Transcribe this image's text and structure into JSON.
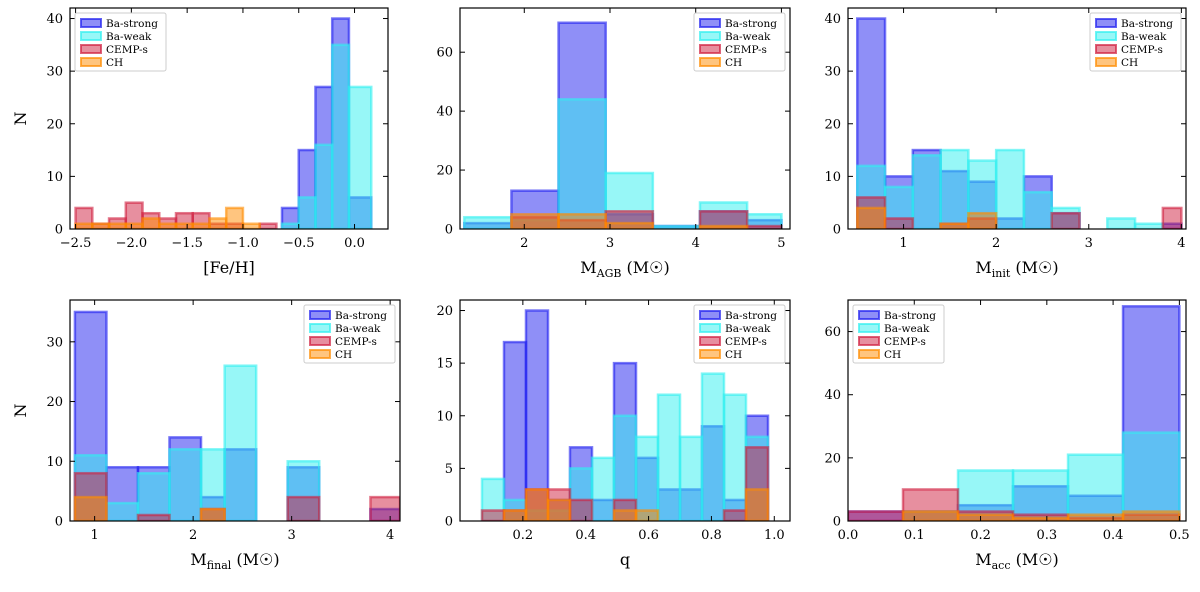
{
  "legend_labels": [
    "Ba-strong",
    "Ba-weak",
    "CEMP-s",
    "CH"
  ],
  "colors": {
    "Ba-strong": "#2020f0",
    "Ba-weak": "#30f0f0",
    "CEMP-s": "#d02040",
    "CH": "#ff8c00"
  },
  "chart_data": [
    {
      "type": "histogram",
      "xlabel": "[Fe/H]",
      "ylabel": "N",
      "xlim": [
        -2.55,
        0.3
      ],
      "ylim": [
        0,
        42
      ],
      "xticks": [
        -2.5,
        -2.0,
        -1.5,
        -1.0,
        -0.5,
        0.0
      ],
      "xtick_labels": [
        "−2.5",
        "−2.0",
        "−1.5",
        "−1.0",
        "−0.5",
        "0.0"
      ],
      "yticks": [
        0,
        10,
        20,
        30,
        40
      ],
      "legend_position": "top-left",
      "series": [
        {
          "name": "Ba-strong",
          "edges": [
            -0.65,
            -0.5,
            -0.35,
            -0.2,
            -0.05,
            0.15
          ],
          "values": [
            4,
            15,
            27,
            40,
            6
          ]
        },
        {
          "name": "Ba-weak",
          "edges": [
            -0.65,
            -0.5,
            -0.35,
            -0.2,
            -0.05,
            0.15
          ],
          "values": [
            1,
            6,
            16,
            35,
            27
          ]
        },
        {
          "name": "CEMP-s",
          "edges": [
            -2.5,
            -2.35,
            -2.2,
            -2.05,
            -1.9,
            -1.75,
            -1.6,
            -1.45,
            -1.3,
            -1.15,
            -1.0,
            -0.85,
            -0.7
          ],
          "values": [
            4,
            1,
            2,
            5,
            3,
            2,
            3,
            3,
            1,
            1,
            0,
            1
          ]
        },
        {
          "name": "CH",
          "edges": [
            -2.5,
            -2.35,
            -2.2,
            -2.05,
            -1.9,
            -1.75,
            -1.6,
            -1.45,
            -1.3,
            -1.15,
            -1.0,
            -0.85,
            -0.7
          ],
          "values": [
            1,
            1,
            1,
            1,
            2,
            1,
            1,
            1,
            2,
            4,
            1,
            0
          ]
        }
      ]
    },
    {
      "type": "histogram",
      "xlabel": "M_AGB (M☉)",
      "ylabel": "",
      "xlim": [
        1.25,
        5.1
      ],
      "ylim": [
        0,
        75
      ],
      "xticks": [
        2,
        3,
        4,
        5
      ],
      "xtick_labels": [
        "2",
        "3",
        "4",
        "5"
      ],
      "yticks": [
        0,
        20,
        40,
        60
      ],
      "legend_position": "top-right",
      "series": [
        {
          "name": "Ba-strong",
          "edges": [
            1.3,
            1.85,
            2.4,
            2.95,
            3.5,
            4.05,
            4.6,
            5.0
          ],
          "values": [
            2,
            13,
            70,
            5,
            1,
            6,
            3
          ]
        },
        {
          "name": "Ba-weak",
          "edges": [
            1.3,
            1.85,
            2.4,
            2.95,
            3.5,
            4.05,
            4.6,
            5.0
          ],
          "values": [
            4,
            3,
            44,
            19,
            1,
            9,
            5
          ]
        },
        {
          "name": "CEMP-s",
          "edges": [
            1.3,
            1.85,
            2.4,
            2.95,
            3.5,
            4.05,
            4.6,
            5.0
          ],
          "values": [
            0,
            4,
            3,
            6,
            0,
            6,
            1
          ]
        },
        {
          "name": "CH",
          "edges": [
            1.3,
            1.85,
            2.4,
            2.95,
            3.5,
            4.05,
            4.6,
            5.0
          ],
          "values": [
            0,
            5,
            5,
            2,
            0,
            1,
            0
          ]
        }
      ]
    },
    {
      "type": "histogram",
      "xlabel": "M_init (M☉)",
      "ylabel": "",
      "xlim": [
        0.4,
        4.05
      ],
      "ylim": [
        0,
        42
      ],
      "xticks": [
        1,
        2,
        3,
        4
      ],
      "xtick_labels": [
        "1",
        "2",
        "3",
        "4"
      ],
      "yticks": [
        0,
        10,
        20,
        30,
        40
      ],
      "legend_position": "top-right",
      "series": [
        {
          "name": "Ba-strong",
          "edges": [
            0.5,
            0.8,
            1.1,
            1.4,
            1.7,
            2.0,
            2.3,
            2.6,
            2.9,
            3.2,
            3.5,
            3.8,
            4.0
          ],
          "values": [
            40,
            10,
            15,
            11,
            9,
            2,
            10,
            3,
            0,
            0,
            0,
            1
          ]
        },
        {
          "name": "Ba-weak",
          "edges": [
            0.5,
            0.8,
            1.1,
            1.4,
            1.7,
            2.0,
            2.3,
            2.6,
            2.9,
            3.2,
            3.5,
            3.8,
            4.0
          ],
          "values": [
            12,
            8,
            14,
            15,
            13,
            15,
            7,
            4,
            0,
            2,
            1,
            0
          ]
        },
        {
          "name": "CEMP-s",
          "edges": [
            0.5,
            0.8,
            1.1,
            1.4,
            1.7,
            2.0,
            2.3,
            2.6,
            2.9,
            3.2,
            3.5,
            3.8,
            4.0
          ],
          "values": [
            6,
            2,
            0,
            1,
            2,
            0,
            0,
            3,
            0,
            0,
            0,
            4
          ]
        },
        {
          "name": "CH",
          "edges": [
            0.5,
            0.8,
            1.1,
            1.4,
            1.7,
            2.0,
            2.3,
            2.6,
            2.9,
            3.2,
            3.5,
            3.8,
            4.0
          ],
          "values": [
            4,
            0,
            0,
            1,
            3,
            0,
            0,
            0,
            0,
            0,
            0,
            0
          ]
        }
      ]
    },
    {
      "type": "histogram",
      "xlabel": "M_final (M☉)",
      "ylabel": "N",
      "xlim": [
        0.75,
        4.1
      ],
      "ylim": [
        0,
        37
      ],
      "xticks": [
        1,
        2,
        3,
        4
      ],
      "xtick_labels": [
        "1",
        "2",
        "3",
        "4"
      ],
      "yticks": [
        0,
        10,
        20,
        30
      ],
      "legend_position": "top-right",
      "series": [
        {
          "name": "Ba-strong",
          "edges": [
            0.8,
            1.12,
            1.44,
            1.76,
            2.08,
            2.32,
            2.64,
            2.96,
            3.28,
            3.6,
            3.8,
            4.1
          ],
          "values": [
            35,
            9,
            9,
            14,
            4,
            12,
            0,
            9,
            0,
            0,
            2
          ]
        },
        {
          "name": "Ba-weak",
          "edges": [
            0.8,
            1.12,
            1.44,
            1.76,
            2.08,
            2.32,
            2.64,
            2.96,
            3.28,
            3.6,
            3.8,
            4.1
          ],
          "values": [
            11,
            3,
            8,
            12,
            12,
            26,
            0,
            10,
            0,
            0,
            0
          ]
        },
        {
          "name": "CEMP-s",
          "edges": [
            0.8,
            1.12,
            1.44,
            1.76,
            2.08,
            2.32,
            2.64,
            2.96,
            3.28,
            3.6,
            3.8,
            4.1
          ],
          "values": [
            8,
            0,
            1,
            0,
            2,
            0,
            0,
            4,
            0,
            0,
            4
          ]
        },
        {
          "name": "CH",
          "edges": [
            0.8,
            1.12,
            1.44,
            1.76,
            2.08,
            2.32,
            2.64,
            2.96,
            3.28,
            3.6,
            3.8,
            4.1
          ],
          "values": [
            4,
            0,
            0,
            0,
            2,
            0,
            0,
            0,
            0,
            0,
            0
          ]
        }
      ]
    },
    {
      "type": "histogram",
      "xlabel": "q",
      "ylabel": "",
      "xlim": [
        0.0,
        1.05
      ],
      "ylim": [
        0,
        21
      ],
      "xticks": [
        0.2,
        0.4,
        0.6,
        0.8,
        1.0
      ],
      "xtick_labels": [
        "0.2",
        "0.4",
        "0.6",
        "0.8",
        "1.0"
      ],
      "yticks": [
        0,
        5,
        10,
        15,
        20
      ],
      "legend_position": "top-right",
      "series": [
        {
          "name": "Ba-strong",
          "edges": [
            0.07,
            0.14,
            0.21,
            0.28,
            0.35,
            0.42,
            0.49,
            0.56,
            0.63,
            0.7,
            0.77,
            0.84,
            0.91,
            0.98,
            1.0
          ],
          "values": [
            0,
            17,
            20,
            2,
            7,
            2,
            15,
            6,
            3,
            3,
            9,
            2,
            10,
            0
          ]
        },
        {
          "name": "Ba-weak",
          "edges": [
            0.07,
            0.14,
            0.21,
            0.28,
            0.35,
            0.42,
            0.49,
            0.56,
            0.63,
            0.7,
            0.77,
            0.84,
            0.91,
            0.98,
            1.0
          ],
          "values": [
            4,
            2,
            1,
            1,
            5,
            6,
            10,
            8,
            12,
            8,
            14,
            12,
            8,
            0
          ]
        },
        {
          "name": "CEMP-s",
          "edges": [
            0.0,
            0.07,
            0.14,
            0.21,
            0.28,
            0.35,
            0.42,
            0.49,
            0.56,
            0.63,
            0.7,
            0.77,
            0.84,
            0.91,
            0.98
          ],
          "values": [
            0,
            1,
            1,
            3,
            3,
            2,
            0,
            2,
            0,
            0,
            0,
            0,
            1,
            7
          ]
        },
        {
          "name": "CH",
          "edges": [
            0.0,
            0.07,
            0.14,
            0.21,
            0.28,
            0.35,
            0.42,
            0.49,
            0.56,
            0.63,
            0.7,
            0.77,
            0.84,
            0.91,
            0.98
          ],
          "values": [
            0,
            0,
            1,
            3,
            2,
            0,
            0,
            1,
            1,
            0,
            0,
            0,
            0,
            3
          ]
        }
      ]
    },
    {
      "type": "histogram",
      "xlabel": "M_acc (M☉)",
      "ylabel": "",
      "xlim": [
        0.0,
        0.51
      ],
      "ylim": [
        0,
        70
      ],
      "xticks": [
        0.0,
        0.1,
        0.2,
        0.3,
        0.4,
        0.5
      ],
      "xtick_labels": [
        "0.0",
        "0.1",
        "0.2",
        "0.3",
        "0.4",
        "0.5"
      ],
      "yticks": [
        0,
        20,
        40,
        60
      ],
      "legend_position": "top-left",
      "series": [
        {
          "name": "Ba-strong",
          "edges": [
            0.0,
            0.083,
            0.166,
            0.249,
            0.332,
            0.415,
            0.5
          ],
          "values": [
            3,
            3,
            5,
            11,
            8,
            68
          ]
        },
        {
          "name": "Ba-weak",
          "edges": [
            0.0,
            0.083,
            0.166,
            0.249,
            0.332,
            0.415,
            0.5
          ],
          "values": [
            0,
            3,
            16,
            16,
            21,
            28
          ]
        },
        {
          "name": "CEMP-s",
          "edges": [
            0.0,
            0.083,
            0.166,
            0.249,
            0.332,
            0.415,
            0.5
          ],
          "values": [
            3,
            10,
            3,
            2,
            1,
            2
          ]
        },
        {
          "name": "CH",
          "edges": [
            0.0,
            0.083,
            0.166,
            0.249,
            0.332,
            0.415,
            0.5
          ],
          "values": [
            0,
            3,
            2,
            1,
            2,
            3
          ]
        }
      ]
    }
  ]
}
